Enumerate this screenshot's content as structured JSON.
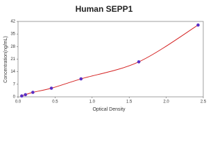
{
  "chart_data": {
    "type": "scatter",
    "title": "Human SEPP1",
    "x_label": "Optical Density",
    "y_label": "Concentration(ng/mL)",
    "x": [
      0.05,
      0.1,
      0.2,
      0.45,
      0.85,
      1.63,
      2.43
    ],
    "values": [
      0.5,
      1.2,
      2.5,
      4.8,
      10,
      19.5,
      40
    ],
    "color": "#5a2fc4",
    "line_color": "#d42020",
    "xlim": [
      0,
      2.5
    ],
    "xticks": [
      {
        "value": 0,
        "label": "0.0"
      },
      0.5,
      {
        "value": 1,
        "label": "1.0"
      },
      1.5,
      {
        "value": 2,
        "label": "2.0"
      },
      2.5
    ],
    "ylim": [
      0,
      42
    ],
    "yticks": [
      0,
      7,
      14,
      21,
      28,
      35,
      42
    ]
  }
}
